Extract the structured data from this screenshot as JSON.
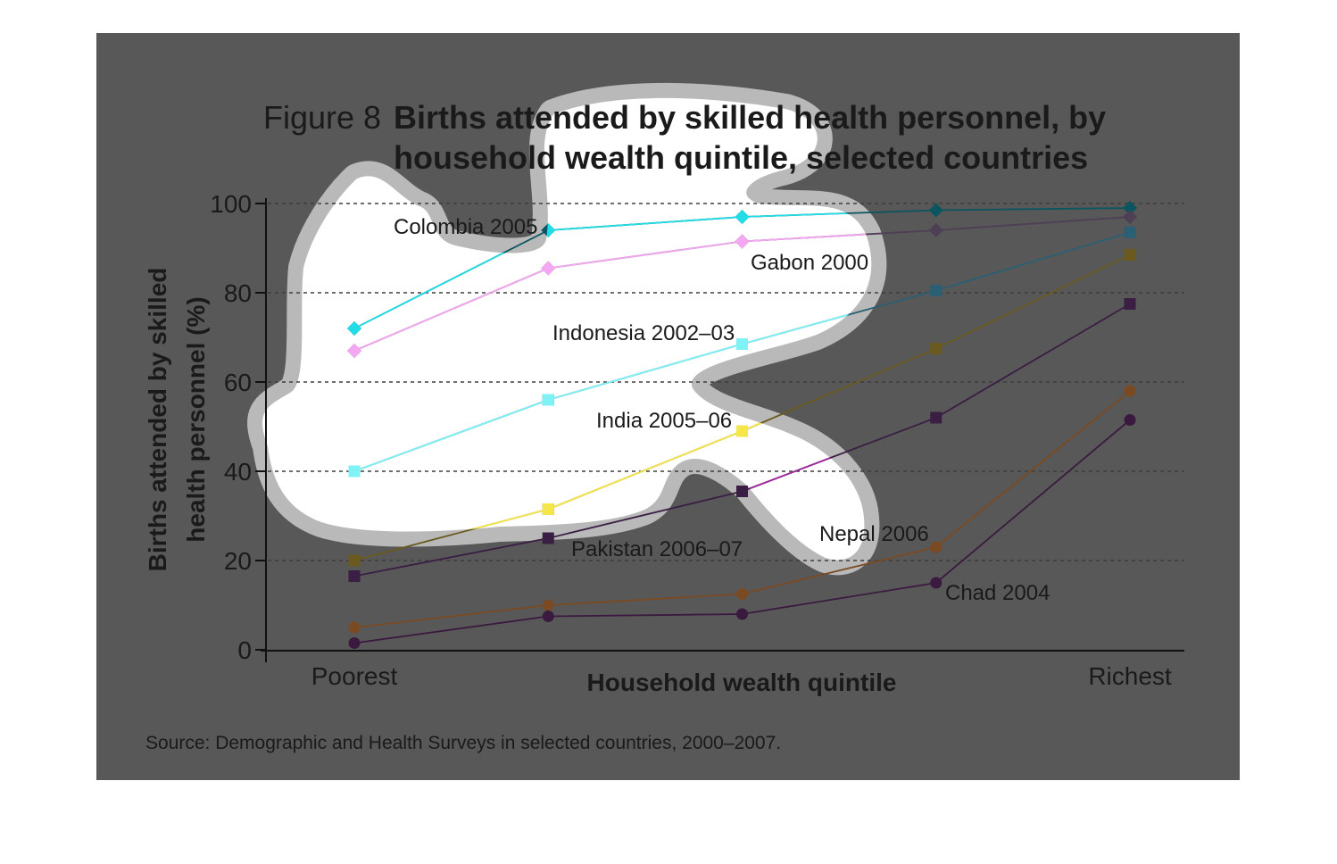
{
  "figure": {
    "label": "Figure 8",
    "title_line1": "Births attended by skilled health personnel, by",
    "title_line2": "household wealth quintile, selected countries",
    "source": "Source: Demographic and Health Surveys in selected countries, 2000–2007."
  },
  "colors": {
    "panel": "#585858",
    "highlight_fill": "#ffffff",
    "highlight_halo": "#b9b9b9"
  },
  "chart_data": {
    "type": "line",
    "xlabel": "Household wealth quintile",
    "ylabel_line1": "Births attended by skilled",
    "ylabel_line2": "health personnel (%)",
    "x": [
      1,
      2,
      3,
      4,
      5
    ],
    "x_tick_labels": [
      "Poorest",
      "",
      "",
      "",
      "Richest"
    ],
    "ylim": [
      0,
      100
    ],
    "y_ticks": [
      0,
      20,
      40,
      60,
      80,
      100
    ],
    "grid": true,
    "series": [
      {
        "name": "Colombia 2005",
        "values": [
          72,
          94,
          97,
          98.5,
          99
        ],
        "color": "#0a5560",
        "marker": "diamond"
      },
      {
        "name": "Gabon 2000",
        "values": [
          67,
          85.5,
          91.5,
          94,
          97
        ],
        "color": "#4e3f55",
        "marker": "diamond"
      },
      {
        "name": "Indonesia 2002–03",
        "values": [
          40,
          56,
          68.5,
          80.5,
          93.5
        ],
        "color": "#2a5f74",
        "marker": "square"
      },
      {
        "name": "India 2005–06",
        "values": [
          20,
          31.5,
          49,
          67.5,
          88.5
        ],
        "color": "#6a5a20",
        "marker": "square"
      },
      {
        "name": "Pakistan 2006–07",
        "values": [
          16.5,
          25,
          35.5,
          52,
          77.5
        ],
        "color": "#3a1e44",
        "marker": "square"
      },
      {
        "name": "Nepal 2006",
        "values": [
          5,
          10,
          12.5,
          23,
          58
        ],
        "color": "#7a4a22",
        "marker": "circle"
      },
      {
        "name": "Chad 2004",
        "values": [
          1.5,
          7.5,
          8,
          15,
          51.5
        ],
        "color": "#3b1a40",
        "marker": "circle"
      }
    ]
  }
}
